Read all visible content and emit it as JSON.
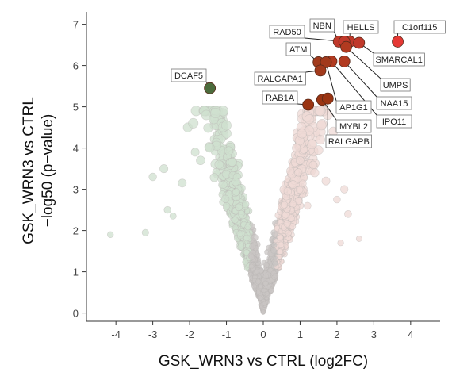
{
  "chart_data": {
    "type": "scatter",
    "title": "",
    "xlabel": "GSK_WRN3 vs CTRL (log2FC)",
    "ylabel_line1": "GSK_WRN3 vs CTRL",
    "ylabel_line2": "−log50 (p−value)",
    "xlim": [
      -4.8,
      4.8
    ],
    "ylim": [
      -0.2,
      7.3
    ],
    "xticks": [
      -4,
      -3,
      -2,
      -1,
      0,
      1,
      2,
      3,
      4
    ],
    "yticks": [
      0,
      1,
      2,
      3,
      4,
      5,
      6,
      7
    ],
    "grid": false,
    "colors": {
      "background_points_neg": "#cfe0cf",
      "background_points_pos": "#efd9d6",
      "center_points": "#c9c6c4",
      "up_significant": "#9a3412",
      "up_top": "#e53935",
      "down_significant": "#4b6b3c",
      "label_border": "#777777"
    },
    "labeled_points": [
      {
        "name": "C1orf115",
        "x": 3.65,
        "y": 6.58,
        "color": "#e53935"
      },
      {
        "name": "HELLS",
        "x": 2.35,
        "y": 6.58,
        "color": "#c0392b"
      },
      {
        "name": "NBN",
        "x": 2.05,
        "y": 6.58,
        "color": "#c0392b"
      },
      {
        "name": "RAD50",
        "x": 2.2,
        "y": 6.58,
        "color": "#c0392b"
      },
      {
        "name": "SMARCAL1",
        "x": 2.6,
        "y": 6.55,
        "color": "#c0392b"
      },
      {
        "name": "UMPS",
        "x": 2.25,
        "y": 6.45,
        "color": "#b13a20"
      },
      {
        "name": "NAA15",
        "x": 2.2,
        "y": 6.1,
        "color": "#b13a20"
      },
      {
        "name": "IPO11",
        "x": 1.85,
        "y": 6.1,
        "color": "#b13a20"
      },
      {
        "name": "ATM",
        "x": 1.5,
        "y": 6.08,
        "color": "#a23a1c"
      },
      {
        "name": "AP1G1",
        "x": 1.7,
        "y": 6.08,
        "color": "#a23a1c"
      },
      {
        "name": "RALGAPA1",
        "x": 1.55,
        "y": 5.88,
        "color": "#a23a1c"
      },
      {
        "name": "MYBL2",
        "x": 1.6,
        "y": 5.17,
        "color": "#9a3412"
      },
      {
        "name": "RALGAPB",
        "x": 1.75,
        "y": 5.2,
        "color": "#9a3412"
      },
      {
        "name": "RAB1A",
        "x": 1.22,
        "y": 5.05,
        "color": "#9a3412"
      },
      {
        "name": "DCAF5",
        "x": -1.45,
        "y": 5.45,
        "color": "#4b6b3c"
      }
    ]
  }
}
